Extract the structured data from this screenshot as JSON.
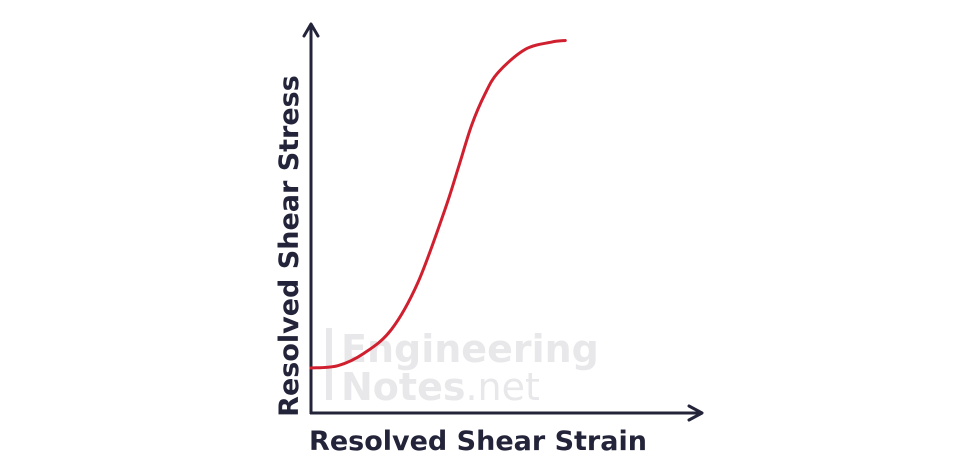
{
  "chart_data": {
    "type": "line",
    "title": "",
    "xlabel": "Resolved Shear Strain",
    "ylabel": "Resolved Shear Stress",
    "grid": false,
    "legend": "none",
    "axis_ticks": false,
    "xlim": [
      0,
      1
    ],
    "ylim": [
      0,
      1
    ],
    "series": [
      {
        "name": "",
        "color": "#d0202f",
        "points": [
          [
            0.0,
            0.116
          ],
          [
            0.069,
            0.122
          ],
          [
            0.136,
            0.154
          ],
          [
            0.206,
            0.215
          ],
          [
            0.274,
            0.336
          ],
          [
            0.343,
            0.523
          ],
          [
            0.378,
            0.633
          ],
          [
            0.412,
            0.742
          ],
          [
            0.446,
            0.822
          ],
          [
            0.48,
            0.878
          ],
          [
            0.549,
            0.937
          ],
          [
            0.617,
            0.956
          ],
          [
            0.652,
            0.96
          ]
        ]
      }
    ]
  },
  "watermark": {
    "line1": "Engineering",
    "line2_bold": "Notes",
    "line2_suffix": ".net"
  },
  "colors": {
    "axis": "#23243a",
    "curve": "#d0202f",
    "watermark": "#e8e8ea",
    "background": "#ffffff"
  }
}
